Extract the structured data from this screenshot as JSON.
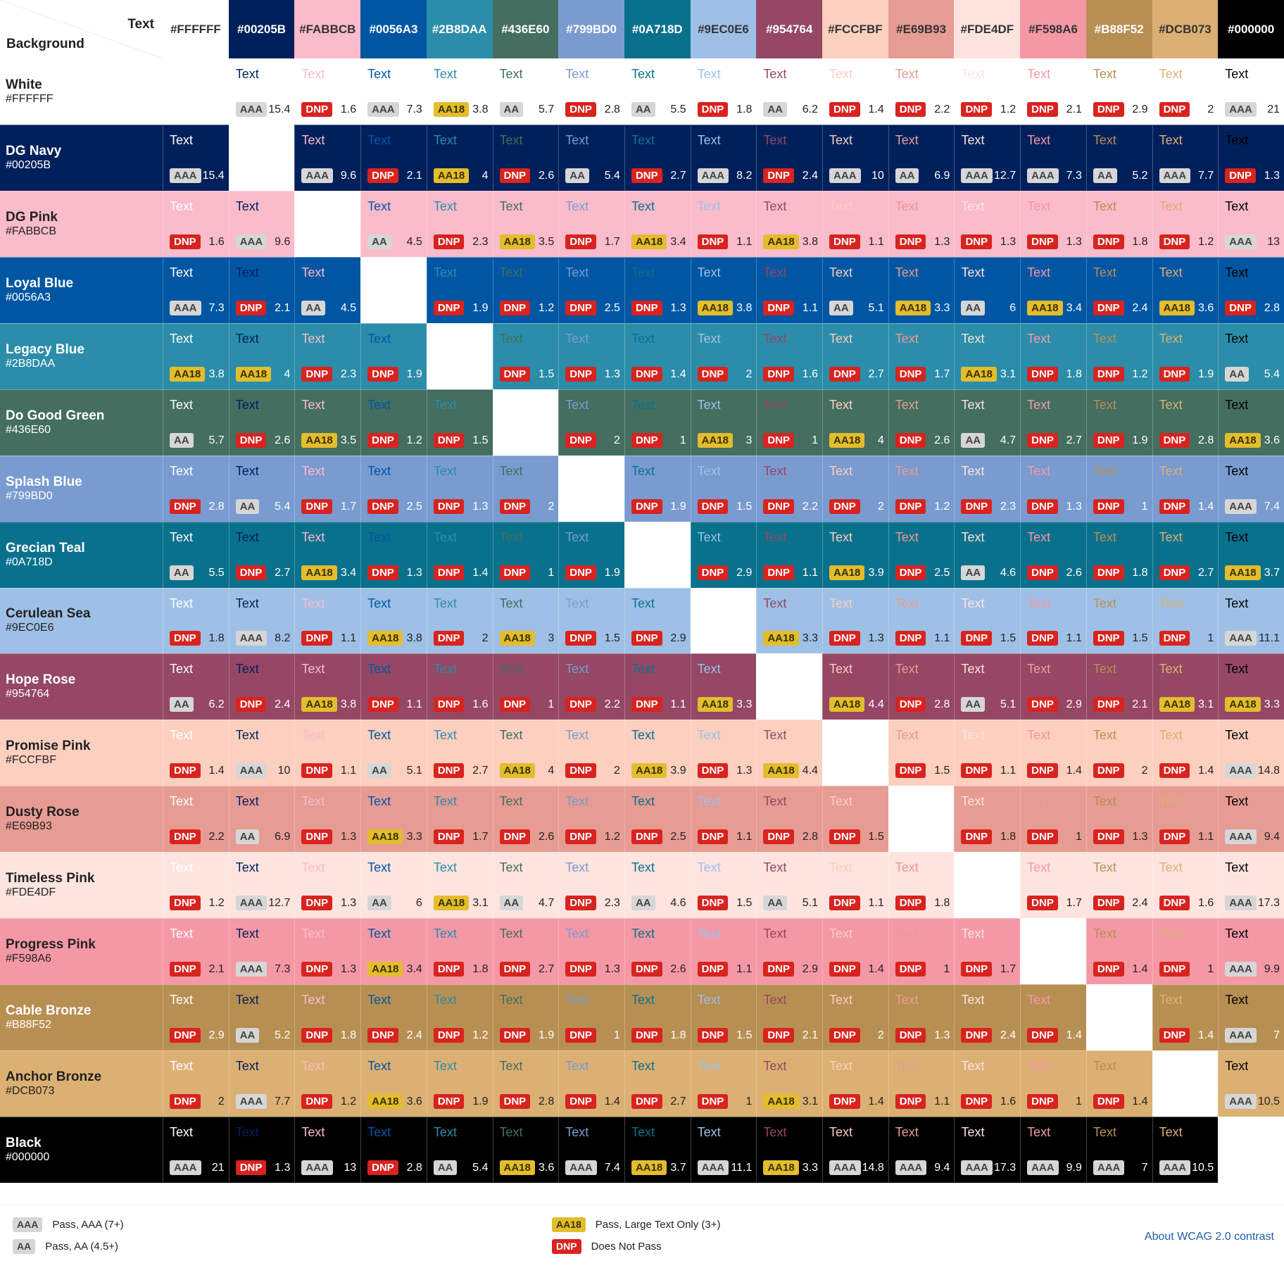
{
  "corner": {
    "text_label": "Text",
    "background_label": "Background"
  },
  "cell_text": "Text",
  "colors": [
    {
      "name": "White",
      "hex": "#FFFFFF"
    },
    {
      "name": "DG Navy",
      "hex": "#00205B"
    },
    {
      "name": "DG Pink",
      "hex": "#FABBCB"
    },
    {
      "name": "Loyal Blue",
      "hex": "#0056A3"
    },
    {
      "name": "Legacy Blue",
      "hex": "#2B8DAA"
    },
    {
      "name": "Do Good Green",
      "hex": "#436E60"
    },
    {
      "name": "Splash Blue",
      "hex": "#799BD0"
    },
    {
      "name": "Grecian Teal",
      "hex": "#0A718D"
    },
    {
      "name": "Cerulean Sea",
      "hex": "#9EC0E6"
    },
    {
      "name": "Hope Rose",
      "hex": "#954764"
    },
    {
      "name": "Promise Pink",
      "hex": "#FCCFBF"
    },
    {
      "name": "Dusty Rose",
      "hex": "#E69B93"
    },
    {
      "name": "Timeless Pink",
      "hex": "#FDE4DF"
    },
    {
      "name": "Progress Pink",
      "hex": "#F598A6"
    },
    {
      "name": "Cable Bronze",
      "hex": "#B88F52"
    },
    {
      "name": "Anchor Bronze",
      "hex": "#DCB073"
    },
    {
      "name": "Black",
      "hex": "#000000"
    }
  ],
  "ratios": [
    [
      null,
      "15.4",
      "1.6",
      "7.3",
      "3.8",
      "5.7",
      "2.8",
      "5.5",
      "1.8",
      "6.2",
      "1.4",
      "2.2",
      "1.2",
      "2.1",
      "2.9",
      "2",
      "21"
    ],
    [
      "15.4",
      null,
      "9.6",
      "2.1",
      "4",
      "2.6",
      "5.4",
      "2.7",
      "8.2",
      "2.4",
      "10",
      "6.9",
      "12.7",
      "7.3",
      "5.2",
      "7.7",
      "1.3"
    ],
    [
      "1.6",
      "9.6",
      null,
      "4.5",
      "2.3",
      "3.5",
      "1.7",
      "3.4",
      "1.1",
      "3.8",
      "1.1",
      "1.3",
      "1.3",
      "1.3",
      "1.8",
      "1.2",
      "13"
    ],
    [
      "7.3",
      "2.1",
      "4.5",
      null,
      "1.9",
      "1.2",
      "2.5",
      "1.3",
      "3.8",
      "1.1",
      "5.1",
      "3.3",
      "6",
      "3.4",
      "2.4",
      "3.6",
      "2.8"
    ],
    [
      "3.8",
      "4",
      "2.3",
      "1.9",
      null,
      "1.5",
      "1.3",
      "1.4",
      "2",
      "1.6",
      "2.7",
      "1.7",
      "3.1",
      "1.8",
      "1.2",
      "1.9",
      "5.4"
    ],
    [
      "5.7",
      "2.6",
      "3.5",
      "1.2",
      "1.5",
      null,
      "2",
      "1",
      "3",
      "1",
      "4",
      "2.6",
      "4.7",
      "2.7",
      "1.9",
      "2.8",
      "3.6"
    ],
    [
      "2.8",
      "5.4",
      "1.7",
      "2.5",
      "1.3",
      "2",
      null,
      "1.9",
      "1.5",
      "2.2",
      "2",
      "1.2",
      "2.3",
      "1.3",
      "1",
      "1.4",
      "7.4"
    ],
    [
      "5.5",
      "2.7",
      "3.4",
      "1.3",
      "1.4",
      "1",
      "1.9",
      null,
      "2.9",
      "1.1",
      "3.9",
      "2.5",
      "4.6",
      "2.6",
      "1.8",
      "2.7",
      "3.7"
    ],
    [
      "1.8",
      "8.2",
      "1.1",
      "3.8",
      "2",
      "3",
      "1.5",
      "2.9",
      null,
      "3.3",
      "1.3",
      "1.1",
      "1.5",
      "1.1",
      "1.5",
      "1",
      "11.1"
    ],
    [
      "6.2",
      "2.4",
      "3.8",
      "1.1",
      "1.6",
      "1",
      "2.2",
      "1.1",
      "3.3",
      null,
      "4.4",
      "2.8",
      "5.1",
      "2.9",
      "2.1",
      "3.1",
      "3.3"
    ],
    [
      "1.4",
      "10",
      "1.1",
      "5.1",
      "2.7",
      "4",
      "2",
      "3.9",
      "1.3",
      "4.4",
      null,
      "1.5",
      "1.1",
      "1.4",
      "2",
      "1.4",
      "14.8"
    ],
    [
      "2.2",
      "6.9",
      "1.3",
      "3.3",
      "1.7",
      "2.6",
      "1.2",
      "2.5",
      "1.1",
      "2.8",
      "1.5",
      null,
      "1.8",
      "1",
      "1.3",
      "1.1",
      "9.4"
    ],
    [
      "1.2",
      "12.7",
      "1.3",
      "6",
      "3.1",
      "4.7",
      "2.3",
      "4.6",
      "1.5",
      "5.1",
      "1.1",
      "1.8",
      null,
      "1.7",
      "2.4",
      "1.6",
      "17.3"
    ],
    [
      "2.1",
      "7.3",
      "1.3",
      "3.4",
      "1.8",
      "2.7",
      "1.3",
      "2.6",
      "1.1",
      "2.9",
      "1.4",
      "1",
      "1.7",
      null,
      "1.4",
      "1",
      "9.9"
    ],
    [
      "2.9",
      "5.2",
      "1.8",
      "2.4",
      "1.2",
      "1.9",
      "1",
      "1.8",
      "1.5",
      "2.1",
      "2",
      "1.3",
      "2.4",
      "1.4",
      null,
      "1.4",
      "7"
    ],
    [
      "2",
      "7.7",
      "1.2",
      "3.6",
      "1.9",
      "2.8",
      "1.4",
      "2.7",
      "1",
      "3.1",
      "1.4",
      "1.1",
      "1.6",
      "1",
      "1.4",
      null,
      "10.5"
    ],
    [
      "21",
      "1.3",
      "13",
      "2.8",
      "5.4",
      "3.6",
      "7.4",
      "3.7",
      "11.1",
      "3.3",
      "14.8",
      "9.4",
      "17.3",
      "9.9",
      "7",
      "10.5",
      null
    ]
  ],
  "legend": [
    {
      "badge": "AAA",
      "label": "Pass, AAA (7+)"
    },
    {
      "badge": "AA",
      "label": "Pass, AA (4.5+)"
    },
    {
      "badge": "AA18",
      "label": "Pass, Large Text Only (3+)"
    },
    {
      "badge": "DNP",
      "label": "Does Not Pass"
    }
  ],
  "legend_link": "About WCAG 2.0 contrast"
}
